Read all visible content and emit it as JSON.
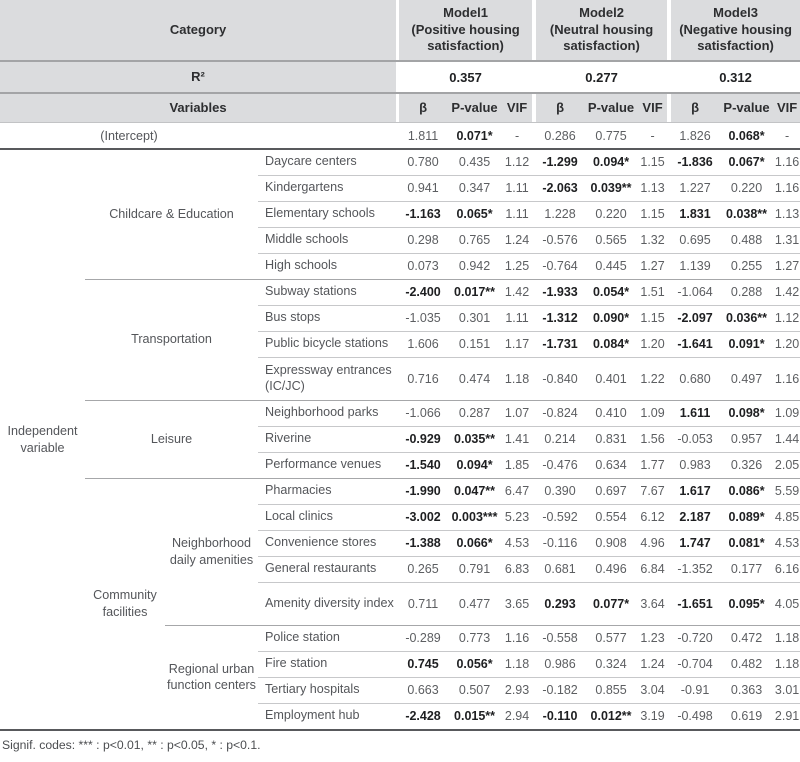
{
  "styles": {
    "header_bg": "#dbdcde"
  },
  "table": {
    "header": {
      "category_label": "Category",
      "models": [
        {
          "title": "Model1",
          "subtitle": "(Positive housing satisfaction)"
        },
        {
          "title": "Model2",
          "subtitle": "(Neutral housing satisfaction)"
        },
        {
          "title": "Model3",
          "subtitle": "(Negative housing satisfaction)"
        }
      ],
      "r2_label": "R²",
      "r2_values": [
        "0.357",
        "0.277",
        "0.312"
      ],
      "variables_label": "Variables",
      "stat_headers": [
        "β",
        "P-value",
        "VIF"
      ]
    },
    "intercept": {
      "label": "(Intercept)",
      "values": [
        "1.811",
        "0.071*",
        "-",
        "0.286",
        "0.775",
        "-",
        "1.826",
        "0.068*",
        "-"
      ],
      "bold": [
        0,
        1,
        0,
        0,
        0,
        0,
        0,
        1,
        0
      ]
    },
    "row_group_label": "Independent variable",
    "sections": [
      {
        "label": "Childcare & Education",
        "rows": [
          {
            "label": "Daycare centers",
            "values": [
              "0.780",
              "0.435",
              "1.12",
              "-1.299",
              "0.094*",
              "1.15",
              "-1.836",
              "0.067*",
              "1.16"
            ],
            "bold": [
              0,
              0,
              0,
              1,
              1,
              0,
              1,
              1,
              0
            ],
            "tall": false
          },
          {
            "label": "Kindergartens",
            "values": [
              "0.941",
              "0.347",
              "1.11",
              "-2.063",
              "0.039**",
              "1.13",
              "1.227",
              "0.220",
              "1.16"
            ],
            "bold": [
              0,
              0,
              0,
              1,
              1,
              0,
              0,
              0,
              0
            ],
            "tall": false
          },
          {
            "label": "Elementary schools",
            "values": [
              "-1.163",
              "0.065*",
              "1.11",
              "1.228",
              "0.220",
              "1.15",
              "1.831",
              "0.038**",
              "1.13"
            ],
            "bold": [
              1,
              1,
              0,
              0,
              0,
              0,
              1,
              1,
              0
            ],
            "tall": false
          },
          {
            "label": "Middle schools",
            "values": [
              "0.298",
              "0.765",
              "1.24",
              "-0.576",
              "0.565",
              "1.32",
              "0.695",
              "0.488",
              "1.31"
            ],
            "bold": [
              0,
              0,
              0,
              0,
              0,
              0,
              0,
              0,
              0
            ],
            "tall": false
          },
          {
            "label": "High schools",
            "values": [
              "0.073",
              "0.942",
              "1.25",
              "-0.764",
              "0.445",
              "1.27",
              "1.139",
              "0.255",
              "1.27"
            ],
            "bold": [
              0,
              0,
              0,
              0,
              0,
              0,
              0,
              0,
              0
            ],
            "tall": false
          }
        ]
      },
      {
        "label": "Transportation",
        "rows": [
          {
            "label": "Subway stations",
            "values": [
              "-2.400",
              "0.017**",
              "1.42",
              "-1.933",
              "0.054*",
              "1.51",
              "-1.064",
              "0.288",
              "1.42"
            ],
            "bold": [
              1,
              1,
              0,
              1,
              1,
              0,
              0,
              0,
              0
            ],
            "tall": false
          },
          {
            "label": "Bus stops",
            "values": [
              "-1.035",
              "0.301",
              "1.11",
              "-1.312",
              "0.090*",
              "1.15",
              "-2.097",
              "0.036**",
              "1.12"
            ],
            "bold": [
              0,
              0,
              0,
              1,
              1,
              0,
              1,
              1,
              0
            ],
            "tall": false
          },
          {
            "label": "Public bicycle stations",
            "values": [
              "1.606",
              "0.151",
              "1.17",
              "-1.731",
              "0.084*",
              "1.20",
              "-1.641",
              "0.091*",
              "1.20"
            ],
            "bold": [
              0,
              0,
              0,
              1,
              1,
              0,
              1,
              1,
              0
            ],
            "tall": false
          },
          {
            "label": "Expressway entrances (IC/JC)",
            "values": [
              "0.716",
              "0.474",
              "1.18",
              "-0.840",
              "0.401",
              "1.22",
              "0.680",
              "0.497",
              "1.16"
            ],
            "bold": [
              0,
              0,
              0,
              0,
              0,
              0,
              0,
              0,
              0
            ],
            "tall": true
          }
        ]
      },
      {
        "label": "Leisure",
        "rows": [
          {
            "label": "Neighborhood parks",
            "values": [
              "-1.066",
              "0.287",
              "1.07",
              "-0.824",
              "0.410",
              "1.09",
              "1.611",
              "0.098*",
              "1.09"
            ],
            "bold": [
              0,
              0,
              0,
              0,
              0,
              0,
              1,
              1,
              0
            ],
            "tall": false
          },
          {
            "label": "Riverine",
            "values": [
              "-0.929",
              "0.035**",
              "1.41",
              "0.214",
              "0.831",
              "1.56",
              "-0.053",
              "0.957",
              "1.44"
            ],
            "bold": [
              1,
              1,
              0,
              0,
              0,
              0,
              0,
              0,
              0
            ],
            "tall": false
          },
          {
            "label": "Performance venues",
            "values": [
              "-1.540",
              "0.094*",
              "1.85",
              "-0.476",
              "0.634",
              "1.77",
              "0.983",
              "0.326",
              "2.05"
            ],
            "bold": [
              1,
              1,
              0,
              0,
              0,
              0,
              0,
              0,
              0
            ],
            "tall": false
          }
        ]
      },
      {
        "label": "Community facilities",
        "subgroups": [
          {
            "label": "Neighborhood daily amenities",
            "rows": [
              {
                "label": "Pharmacies",
                "values": [
                  "-1.990",
                  "0.047**",
                  "6.47",
                  "0.390",
                  "0.697",
                  "7.67",
                  "1.617",
                  "0.086*",
                  "5.59"
                ],
                "bold": [
                  1,
                  1,
                  0,
                  0,
                  0,
                  0,
                  1,
                  1,
                  0
                ],
                "tall": false
              },
              {
                "label": "Local clinics",
                "values": [
                  "-3.002",
                  "0.003***",
                  "5.23",
                  "-0.592",
                  "0.554",
                  "6.12",
                  "2.187",
                  "0.089*",
                  "4.85"
                ],
                "bold": [
                  1,
                  1,
                  0,
                  0,
                  0,
                  0,
                  1,
                  1,
                  0
                ],
                "tall": false
              },
              {
                "label": "Convenience stores",
                "values": [
                  "-1.388",
                  "0.066*",
                  "4.53",
                  "-0.116",
                  "0.908",
                  "4.96",
                  "1.747",
                  "0.081*",
                  "4.53"
                ],
                "bold": [
                  1,
                  1,
                  0,
                  0,
                  0,
                  0,
                  1,
                  1,
                  0
                ],
                "tall": false
              },
              {
                "label": "General restaurants",
                "values": [
                  "0.265",
                  "0.791",
                  "6.83",
                  "0.681",
                  "0.496",
                  "6.84",
                  "-1.352",
                  "0.177",
                  "6.16"
                ],
                "bold": [
                  0,
                  0,
                  0,
                  0,
                  0,
                  0,
                  0,
                  0,
                  0
                ],
                "tall": false
              },
              {
                "label": "Amenity diversity index",
                "values": [
                  "0.711",
                  "0.477",
                  "3.65",
                  "0.293",
                  "0.077*",
                  "3.64",
                  "-1.651",
                  "0.095*",
                  "4.05"
                ],
                "bold": [
                  0,
                  0,
                  0,
                  1,
                  1,
                  0,
                  1,
                  1,
                  0
                ],
                "tall": true
              }
            ]
          },
          {
            "label": "Regional urban function centers",
            "rows": [
              {
                "label": "Police station",
                "values": [
                  "-0.289",
                  "0.773",
                  "1.16",
                  "-0.558",
                  "0.577",
                  "1.23",
                  "-0.720",
                  "0.472",
                  "1.18"
                ],
                "bold": [
                  0,
                  0,
                  0,
                  0,
                  0,
                  0,
                  0,
                  0,
                  0
                ],
                "tall": false
              },
              {
                "label": "Fire station",
                "values": [
                  "0.745",
                  "0.056*",
                  "1.18",
                  "0.986",
                  "0.324",
                  "1.24",
                  "-0.704",
                  "0.482",
                  "1.18"
                ],
                "bold": [
                  1,
                  1,
                  0,
                  0,
                  0,
                  0,
                  0,
                  0,
                  0
                ],
                "tall": false
              },
              {
                "label": "Tertiary hospitals",
                "values": [
                  "0.663",
                  "0.507",
                  "2.93",
                  "-0.182",
                  "0.855",
                  "3.04",
                  "-0.91",
                  "0.363",
                  "3.01"
                ],
                "bold": [
                  0,
                  0,
                  0,
                  0,
                  0,
                  0,
                  0,
                  0,
                  0
                ],
                "tall": false
              },
              {
                "label": "Employment hub",
                "values": [
                  "-2.428",
                  "0.015**",
                  "2.94",
                  "-0.110",
                  "0.012**",
                  "3.19",
                  "-0.498",
                  "0.619",
                  "2.91"
                ],
                "bold": [
                  1,
                  1,
                  0,
                  1,
                  1,
                  0,
                  0,
                  0,
                  0
                ],
                "tall": false
              }
            ]
          }
        ]
      }
    ],
    "footnote": "Signif. codes: *** : p<0.01, ** : p<0.05, * : p<0.1."
  }
}
